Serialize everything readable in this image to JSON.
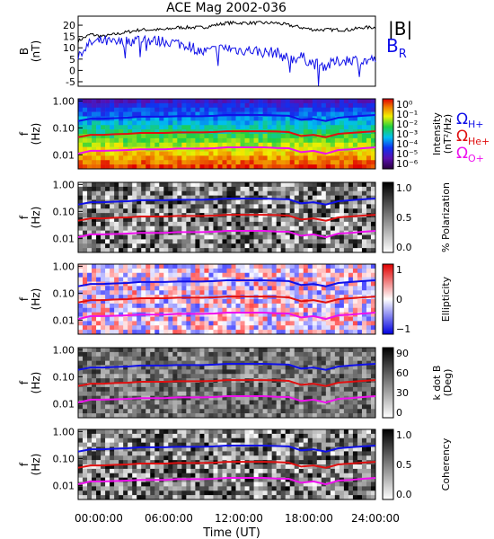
{
  "title": "ACE Mag 2002-036",
  "x_axis": {
    "label": "Time (UT)",
    "ticks": [
      "00:00:00",
      "06:00:00",
      "12:00:00",
      "18:00:00",
      "24:00:00"
    ],
    "range_hours": [
      0,
      24
    ]
  },
  "legend_b": [
    {
      "text": "|B|",
      "color": "#000000"
    },
    {
      "text": "B",
      "sub": "R",
      "color": "#1010e8"
    }
  ],
  "legend_gyro": [
    {
      "text": "Ω",
      "sub": "H+",
      "color": "#1010e8"
    },
    {
      "text": "Ω",
      "sub": "He+",
      "color": "#e01010"
    },
    {
      "text": "Ω",
      "sub": "O+",
      "color": "#ee10ee"
    }
  ],
  "panels": [
    {
      "id": "b",
      "ylabel": "B",
      "yunit": "(nT)",
      "yticks": [
        "20",
        "15",
        "10",
        "5",
        "0",
        "-5"
      ],
      "yrange": [
        -7,
        24
      ]
    },
    {
      "id": "intensity",
      "ylabel": "f",
      "yunit": "(Hz)",
      "yticks": [
        "1.00",
        "0.10",
        "0.01"
      ],
      "cbar_label": "Intensity",
      "cbar_unit": "(nT²/Hz)",
      "cbar_ticks": [
        "10⁰",
        "10⁻¹",
        "10⁻²",
        "10⁻³",
        "10⁻⁴",
        "10⁻⁵",
        "10⁻⁶"
      ],
      "colormap": "rainbow"
    },
    {
      "id": "polarization",
      "ylabel": "f",
      "yunit": "(Hz)",
      "yticks": [
        "1.00",
        "0.10",
        "0.01"
      ],
      "cbar_label": "% Polarization",
      "cbar_ticks": [
        "1.0",
        "0.5",
        "0.0"
      ],
      "colormap": "gray"
    },
    {
      "id": "ellipticity",
      "ylabel": "f",
      "yunit": "(Hz)",
      "yticks": [
        "1.00",
        "0.10",
        "0.01"
      ],
      "cbar_label": "Ellipticity",
      "cbar_ticks": [
        "1",
        "0",
        "−1"
      ],
      "colormap": "bwr"
    },
    {
      "id": "kdotb",
      "ylabel": "f",
      "yunit": "(Hz)",
      "yticks": [
        "1.00",
        "0.10",
        "0.01"
      ],
      "cbar_label": "k dot B",
      "cbar_unit": "(Deg)",
      "cbar_ticks": [
        "90",
        "60",
        "30",
        "0"
      ],
      "colormap": "gray"
    },
    {
      "id": "coherency",
      "ylabel": "f",
      "yunit": "(Hz)",
      "yticks": [
        "1.00",
        "0.10",
        "0.01"
      ],
      "cbar_label": "Coherency",
      "cbar_ticks": [
        "1.0",
        "0.5",
        "0.0"
      ],
      "colormap": "gray"
    }
  ],
  "chart_data": {
    "type": "line",
    "title": "ACE Mag 2002-036",
    "xlabel": "Time (UT)",
    "x_hours": [
      0,
      1,
      2,
      3,
      4,
      5,
      6,
      7,
      8,
      9,
      10,
      11,
      12,
      13,
      14,
      15,
      16,
      17,
      18,
      19,
      20,
      21,
      22,
      23,
      24
    ],
    "magnetic_field": {
      "ylabel": "B (nT)",
      "ylim": [
        -7,
        24
      ],
      "series": [
        {
          "name": "|B|",
          "color": "#000000",
          "values": [
            13,
            16,
            15,
            16,
            17,
            18,
            18,
            18,
            19,
            19,
            19,
            20,
            21,
            21,
            21,
            21,
            21,
            20,
            19,
            18,
            18,
            18,
            18,
            19,
            19
          ]
        },
        {
          "name": "B_R",
          "color": "#1010e8",
          "values": [
            7,
            12,
            13,
            12,
            13,
            14,
            13,
            13,
            12,
            11,
            8,
            9,
            10,
            9,
            9,
            8,
            8,
            5,
            6,
            3,
            2,
            4,
            5,
            4,
            5
          ]
        }
      ]
    },
    "gyrofrequencies_hz": {
      "ylim": [
        0.003,
        1.2
      ],
      "yscale": "log",
      "series": [
        {
          "name": "Ω_H+",
          "color": "#1010e8",
          "values": [
            0.18,
            0.22,
            0.22,
            0.23,
            0.24,
            0.26,
            0.26,
            0.26,
            0.27,
            0.27,
            0.27,
            0.28,
            0.3,
            0.3,
            0.3,
            0.3,
            0.29,
            0.28,
            0.2,
            0.22,
            0.18,
            0.24,
            0.26,
            0.28,
            0.3
          ]
        },
        {
          "name": "Ω_He+",
          "color": "#e01010",
          "values": [
            0.045,
            0.055,
            0.055,
            0.058,
            0.06,
            0.065,
            0.065,
            0.065,
            0.068,
            0.068,
            0.068,
            0.07,
            0.075,
            0.075,
            0.075,
            0.075,
            0.073,
            0.07,
            0.05,
            0.055,
            0.045,
            0.06,
            0.065,
            0.07,
            0.075
          ]
        },
        {
          "name": "Ω_O+",
          "color": "#ee10ee",
          "values": [
            0.011,
            0.014,
            0.014,
            0.0145,
            0.015,
            0.016,
            0.016,
            0.016,
            0.017,
            0.017,
            0.017,
            0.0175,
            0.019,
            0.019,
            0.019,
            0.019,
            0.018,
            0.0175,
            0.0125,
            0.014,
            0.011,
            0.015,
            0.016,
            0.0175,
            0.019
          ]
        }
      ]
    }
  }
}
